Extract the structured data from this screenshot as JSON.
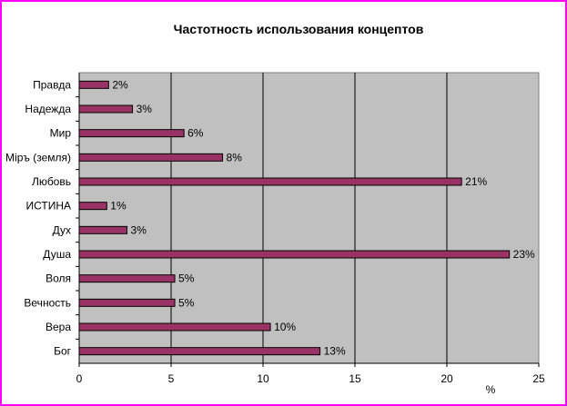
{
  "chart_data": {
    "type": "bar",
    "orientation": "horizontal",
    "title": "Частотность использования концептов",
    "xlabel": "%",
    "ylabel": "",
    "categories": [
      "Правда",
      "Надежда",
      "Мир",
      "Міръ (земля)",
      "Любовь",
      "ИСТИНА",
      "Дух",
      "Душа",
      "Воля",
      "Вечность",
      "Вера",
      "Бог"
    ],
    "values": [
      1.6,
      2.9,
      5.7,
      7.8,
      20.8,
      1.5,
      2.6,
      23.4,
      5.2,
      5.2,
      10.4,
      13.1
    ],
    "data_labels": [
      "2%",
      "3%",
      "6%",
      "8%",
      "21%",
      "1%",
      "3%",
      "23%",
      "5%",
      "5%",
      "10%",
      "13%"
    ],
    "xlim": [
      0,
      25
    ],
    "x_ticks": [
      "0",
      "5",
      "10",
      "15",
      "20",
      "25"
    ],
    "grid": true,
    "colors": {
      "bar": "#993366",
      "plot_background": "#c0c0c0",
      "border": "#ff00ff"
    }
  }
}
